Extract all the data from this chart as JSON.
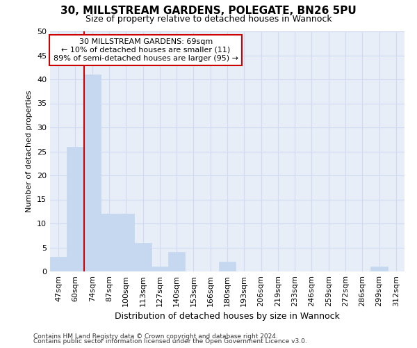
{
  "title_line1": "30, MILLSTREAM GARDENS, POLEGATE, BN26 5PU",
  "title_line2": "Size of property relative to detached houses in Wannock",
  "xlabel": "Distribution of detached houses by size in Wannock",
  "ylabel": "Number of detached properties",
  "categories": [
    "47sqm",
    "60sqm",
    "74sqm",
    "87sqm",
    "100sqm",
    "113sqm",
    "127sqm",
    "140sqm",
    "153sqm",
    "166sqm",
    "180sqm",
    "193sqm",
    "206sqm",
    "219sqm",
    "233sqm",
    "246sqm",
    "259sqm",
    "272sqm",
    "286sqm",
    "299sqm",
    "312sqm"
  ],
  "values": [
    3,
    26,
    41,
    12,
    12,
    6,
    1,
    4,
    0,
    0,
    2,
    0,
    0,
    0,
    0,
    0,
    0,
    0,
    0,
    1,
    0
  ],
  "bar_color": "#c5d8f0",
  "bar_edge_color": "#c5d8f0",
  "ylim": [
    0,
    50
  ],
  "yticks": [
    0,
    5,
    10,
    15,
    20,
    25,
    30,
    35,
    40,
    45,
    50
  ],
  "property_line_x": 2.0,
  "annotation_text_line1": "30 MILLSTREAM GARDENS: 69sqm",
  "annotation_text_line2": "← 10% of detached houses are smaller (11)",
  "annotation_text_line3": "89% of semi-detached houses are larger (95) →",
  "annotation_box_color": "#ffffff",
  "annotation_box_edge_color": "#cc0000",
  "red_line_color": "#cc0000",
  "footnote_line1": "Contains HM Land Registry data © Crown copyright and database right 2024.",
  "footnote_line2": "Contains public sector information licensed under the Open Government Licence v3.0.",
  "grid_color": "#d0daf0",
  "background_color": "#e8eef8",
  "title1_fontsize": 11,
  "title2_fontsize": 9,
  "ylabel_fontsize": 8,
  "xlabel_fontsize": 9,
  "tick_fontsize": 8,
  "annot_fontsize": 8,
  "footnote_fontsize": 6.5
}
